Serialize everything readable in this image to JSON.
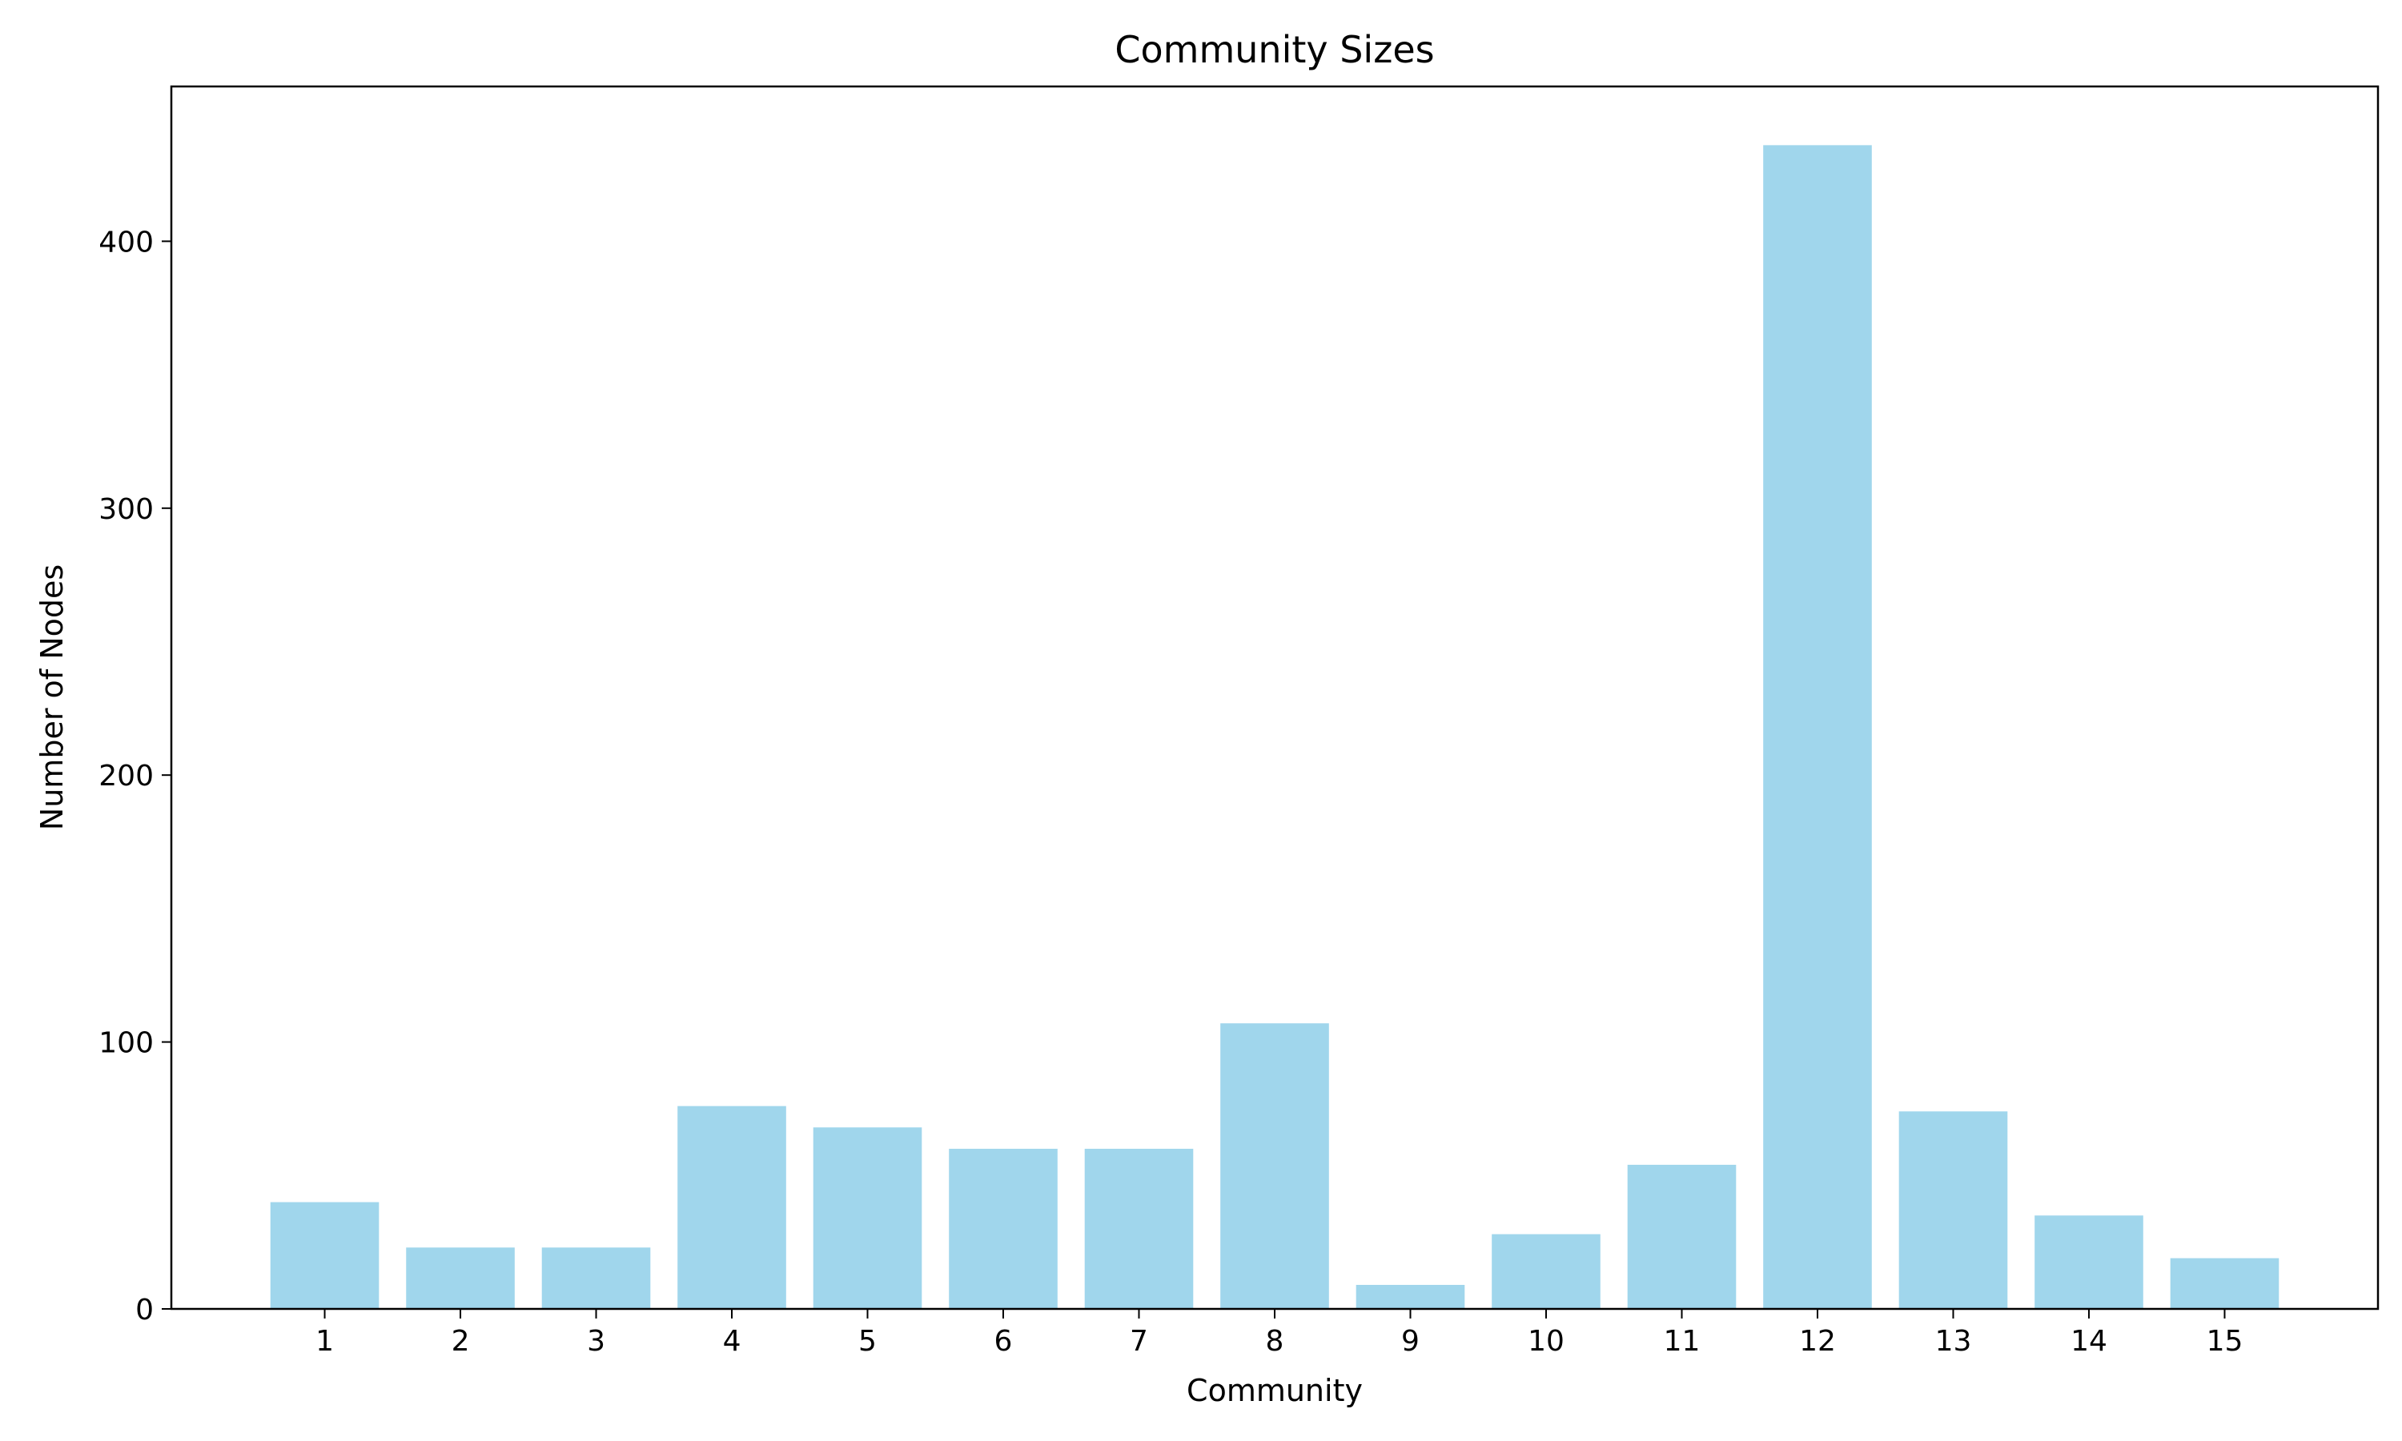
{
  "colors": {
    "bar": "#a0d6ec",
    "axis": "#000000",
    "background": "#ffffff"
  },
  "chart_data": {
    "type": "bar",
    "title": "Community Sizes",
    "xlabel": "Community",
    "ylabel": "Number of Nodes",
    "categories": [
      "1",
      "2",
      "3",
      "4",
      "5",
      "6",
      "7",
      "8",
      "9",
      "10",
      "11",
      "12",
      "13",
      "14",
      "15"
    ],
    "values": [
      40,
      23,
      23,
      76,
      68,
      60,
      60,
      107,
      9,
      28,
      54,
      436,
      74,
      35,
      19
    ],
    "ylim": [
      0,
      458
    ],
    "yticks": [
      0,
      100,
      200,
      300,
      400
    ],
    "grid": false,
    "legend": "none"
  }
}
